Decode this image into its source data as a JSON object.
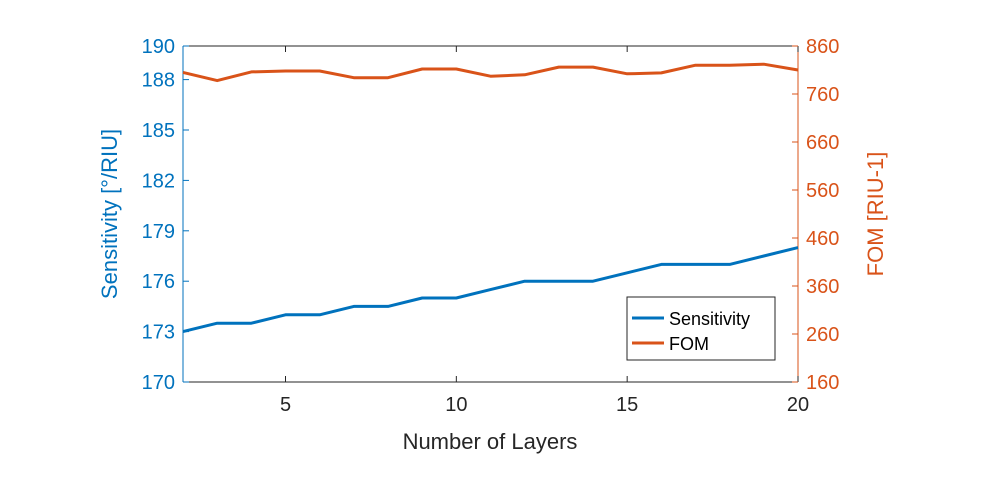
{
  "colors": {
    "sensitivity": "#0072BD",
    "fom": "#D95319",
    "axis": "#262626"
  },
  "chart_data": {
    "type": "line",
    "xlabel": "Number of Layers",
    "ylabel_left": "Sensitivity [°/RIU]",
    "ylabel_right": "FOM [RIU-1]",
    "xlim": [
      2,
      20
    ],
    "ylim_left": [
      170,
      190
    ],
    "ylim_right": [
      160,
      860
    ],
    "x_ticks": [
      5,
      10,
      15,
      20
    ],
    "y_ticks_left": [
      170,
      173,
      176,
      179,
      182,
      185,
      188,
      190
    ],
    "y_ticks_right": [
      160,
      260,
      360,
      460,
      560,
      660,
      760,
      860
    ],
    "legend": {
      "location": "lower-right",
      "entries": [
        "Sensitivity",
        "FOM"
      ]
    },
    "x": [
      2,
      3,
      4,
      5,
      6,
      7,
      8,
      9,
      10,
      11,
      12,
      13,
      14,
      15,
      16,
      17,
      18,
      19,
      20
    ],
    "series": [
      {
        "name": "Sensitivity",
        "axis": "left",
        "values": [
          173,
          173.5,
          173.5,
          174,
          174,
          174.5,
          174.5,
          175,
          175,
          175.5,
          176,
          176,
          176,
          176.5,
          177,
          177,
          177,
          177.5,
          178
        ]
      },
      {
        "name": "FOM",
        "axis": "right",
        "values": [
          805,
          788,
          806,
          808,
          808,
          794,
          794,
          812,
          812,
          797,
          800,
          816,
          816,
          802,
          804,
          820,
          820,
          822,
          810
        ]
      }
    ]
  }
}
